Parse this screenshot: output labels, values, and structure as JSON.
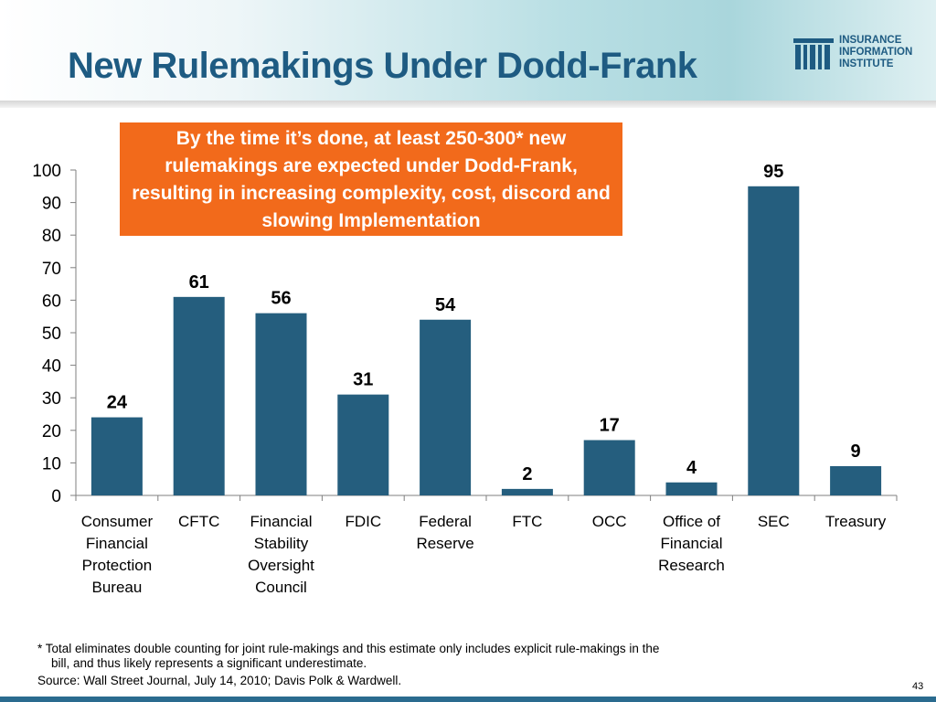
{
  "slide": {
    "title": "New Rulemakings Under Dodd-Frank",
    "page_number": "43"
  },
  "logo": {
    "lines": [
      "INSURANCE",
      "INFORMATION",
      "INSTITUTE"
    ],
    "color": "#1e5b82"
  },
  "callout": {
    "text": "By the time it’s done, at least 250-300* new rulemakings are expected under Dodd-Frank, resulting in increasing complexity, cost, discord and slowing Implementation",
    "color": "#f26a1b"
  },
  "footnote": {
    "line1": "* Total eliminates double counting for joint rule-makings and this estimate only includes explicit rule-makings in the",
    "line2": "bill, and thus likely represents a significant underestimate.",
    "source": "Source:  Wall Street Journal, July 14, 2010; Davis Polk & Wardwell."
  },
  "chart_data": {
    "type": "bar",
    "title": "",
    "xlabel": "",
    "ylabel": "",
    "ylim": [
      0,
      100
    ],
    "yticks": [
      0,
      10,
      20,
      30,
      40,
      50,
      60,
      70,
      80,
      90,
      100
    ],
    "bar_color": "#255e7e",
    "categories": [
      [
        "Consumer",
        "Financial",
        "Protection",
        "Bureau"
      ],
      [
        "CFTC"
      ],
      [
        "Financial",
        "Stability",
        "Oversight",
        "Council"
      ],
      [
        "FDIC"
      ],
      [
        "Federal",
        "Reserve"
      ],
      [
        "FTC"
      ],
      [
        "OCC"
      ],
      [
        "Office of",
        "Financial",
        "Research"
      ],
      [
        "SEC"
      ],
      [
        "Treasury"
      ]
    ],
    "values": [
      24,
      61,
      56,
      31,
      54,
      2,
      17,
      4,
      95,
      9
    ],
    "data_labels": [
      "24",
      "61",
      "56",
      "31",
      "54",
      "2",
      "17",
      "4",
      "95",
      "9"
    ]
  }
}
